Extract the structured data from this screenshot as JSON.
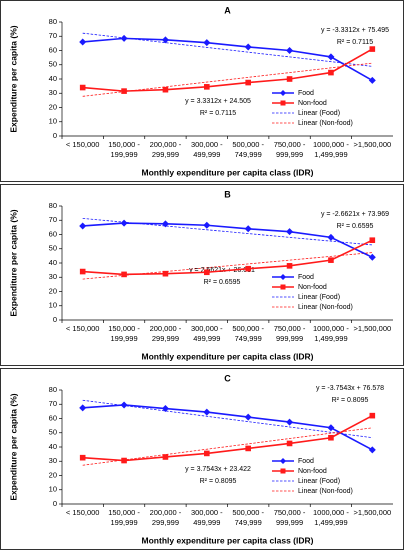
{
  "chart_data": [
    {
      "type": "line",
      "title": "A",
      "x_label": "Monthly expenditure per capita class (IDR)",
      "y_label": "Expenditure per capita (%)",
      "categories": [
        "< 150,000",
        "150,000 - 199,999",
        "200,000 - 299,999",
        "300,000 - 499,999",
        "500,000 - 749,999",
        "750,000 - 999,999",
        "1000,000 - 1,499,999",
        ">1,500,000"
      ],
      "ylim": [
        0,
        80
      ],
      "yticks": [
        0,
        10,
        20,
        30,
        40,
        50,
        60,
        70,
        80
      ],
      "series": [
        {
          "name": "Food",
          "color": "#1a1aff",
          "marker": "diamond",
          "values": [
            66,
            68.5,
            67.5,
            65.5,
            62.5,
            60,
            55.5,
            39
          ]
        },
        {
          "name": "Non-food",
          "color": "#ff1a1a",
          "marker": "square",
          "values": [
            34,
            31.5,
            32.5,
            34.5,
            37.5,
            40,
            44.5,
            61
          ]
        }
      ],
      "trendlines": [
        {
          "name": "Linear (Food)",
          "color": "#1a1aff",
          "slope": -3.3312,
          "intercept": 75.495,
          "equation": "y = -3.3312x + 75.495",
          "r2": "R² = 0.7115"
        },
        {
          "name": "Linear (Non-food)",
          "color": "#ff1a1a",
          "slope": 3.3312,
          "intercept": 24.505,
          "equation": "y = 3.3312x + 24.505",
          "r2": "R² = 0.7115"
        }
      ]
    },
    {
      "type": "line",
      "title": "B",
      "x_label": "Monthly expenditure per capita class (IDR)",
      "y_label": "Expenditure per capita (%)",
      "categories": [
        "< 150,000",
        "150,000 - 199,999",
        "200,000 - 299,999",
        "300,000 - 499,999",
        "500,000 - 749,999",
        "750,000 - 999,999",
        "1000,000 - 1,499,999",
        ">1,500,000"
      ],
      "ylim": [
        0,
        80
      ],
      "yticks": [
        0,
        10,
        20,
        30,
        40,
        50,
        60,
        70,
        80
      ],
      "series": [
        {
          "name": "Food",
          "color": "#1a1aff",
          "marker": "diamond",
          "values": [
            66,
            68,
            67.5,
            66.5,
            64,
            62,
            58,
            44
          ]
        },
        {
          "name": "Non-food",
          "color": "#ff1a1a",
          "marker": "square",
          "values": [
            34,
            32,
            32.5,
            33.5,
            36,
            38,
            42,
            56
          ]
        }
      ],
      "trendlines": [
        {
          "name": "Linear (Food)",
          "color": "#1a1aff",
          "slope": -2.6621,
          "intercept": 73.969,
          "equation": "y = -2.6621x + 73.969",
          "r2": "R² = 0.6595"
        },
        {
          "name": "Linear (Non-food)",
          "color": "#ff1a1a",
          "slope": 2.6621,
          "intercept": 26.031,
          "equation": "y = 2.6621x + 26.031",
          "r2": "R² = 0.6595"
        }
      ]
    },
    {
      "type": "line",
      "title": "C",
      "x_label": "Monthly expenditure per capita class (IDR)",
      "y_label": "Expenditure per capita (%)",
      "categories": [
        "< 150,000",
        "150,000 - 199,999",
        "200,000 - 299,999",
        "300,000 - 499,999",
        "500,000 - 749,999",
        "750,000 - 999,999",
        "1000,000 - 1,499,999",
        ">1,500,000"
      ],
      "ylim": [
        0,
        80
      ],
      "yticks": [
        0,
        10,
        20,
        30,
        40,
        50,
        60,
        70,
        80
      ],
      "series": [
        {
          "name": "Food",
          "color": "#1a1aff",
          "marker": "diamond",
          "values": [
            67.5,
            69.5,
            67,
            64.5,
            61,
            57.5,
            53.5,
            38
          ]
        },
        {
          "name": "Non-food",
          "color": "#ff1a1a",
          "marker": "square",
          "values": [
            32.5,
            30.5,
            33,
            35.5,
            39,
            42.5,
            46.5,
            62
          ]
        }
      ],
      "trendlines": [
        {
          "name": "Linear (Food)",
          "color": "#1a1aff",
          "slope": -3.7543,
          "intercept": 76.578,
          "equation": "y = -3.7543x + 76.578",
          "r2": "R² = 0.8095"
        },
        {
          "name": "Linear (Non-food)",
          "color": "#ff1a1a",
          "slope": 3.7543,
          "intercept": 23.422,
          "equation": "y = 3.7543x + 23.422",
          "r2": "R² = 0.8095"
        }
      ]
    }
  ]
}
